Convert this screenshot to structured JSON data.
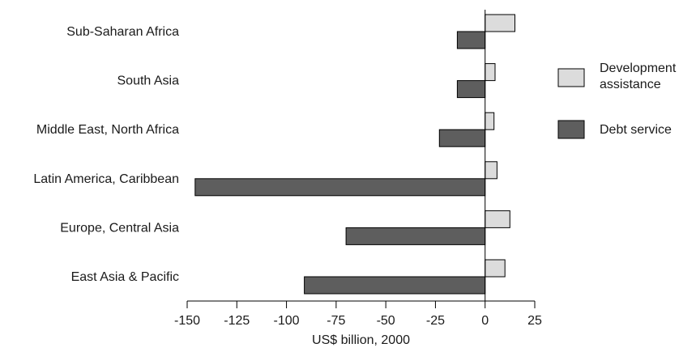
{
  "chart_data": {
    "type": "bar",
    "orientation": "horizontal",
    "categories": [
      "Sub-Saharan Africa",
      "South Asia",
      "Middle East, North Africa",
      "Latin America, Caribbean",
      "Europe, Central Asia",
      "East Asia & Pacific"
    ],
    "series": [
      {
        "name": "Development assistance",
        "name_lines": [
          "Development",
          "assistance"
        ],
        "color": "#dcdcdc",
        "values": [
          15,
          5,
          4.5,
          6,
          12.5,
          10
        ]
      },
      {
        "name": "Debt service",
        "name_lines": [
          "Debt service"
        ],
        "color": "#5e5e5e",
        "values": [
          -14,
          -14,
          -23,
          -146,
          -70,
          -91
        ]
      }
    ],
    "xlabel": "US$ billion, 2000",
    "xlim": [
      -150,
      25
    ],
    "xticks": [
      "-150",
      "-125",
      "-100",
      "-75",
      "-50",
      "-25",
      "0",
      "25"
    ],
    "xtick_values": [
      -150,
      -125,
      -100,
      -75,
      -50,
      -25,
      0,
      25
    ],
    "grid": false,
    "legend_position": "right"
  }
}
